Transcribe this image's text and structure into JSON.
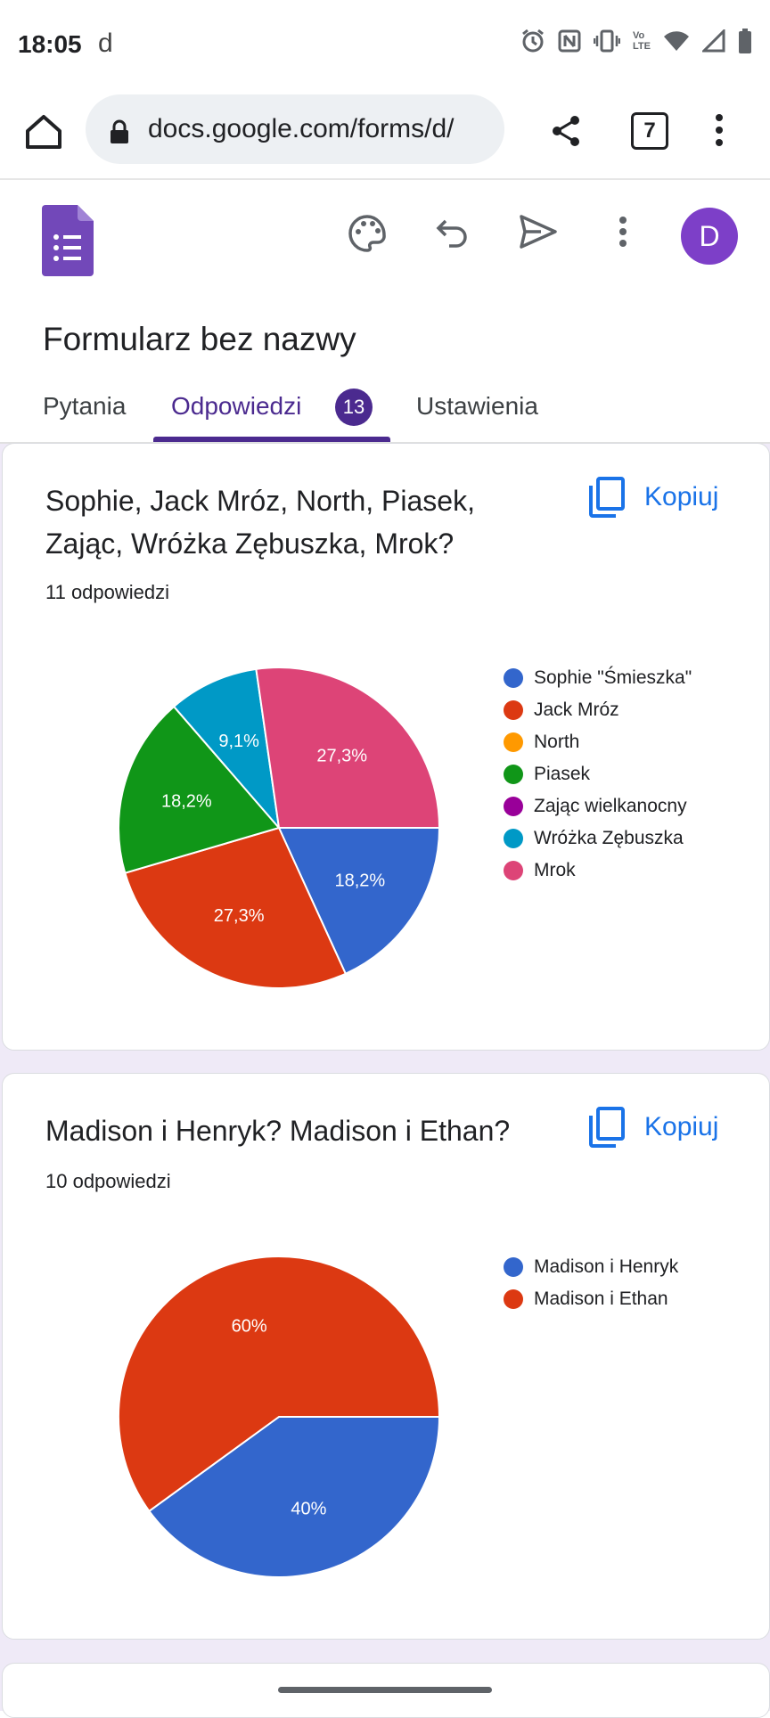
{
  "status": {
    "time": "18:05",
    "app_glyph": "d",
    "icons": [
      "alarm-icon",
      "nfc-icon",
      "vibrate-icon",
      "volte-icon",
      "wifi-icon",
      "signal-icon",
      "battery-icon"
    ],
    "volte_label": "Vo\nLTE"
  },
  "browser": {
    "url": "docs.google.com/forms/d/",
    "tab_count": "7"
  },
  "form": {
    "title": "Formularz bez nazwy",
    "avatar_letter": "D",
    "accent": "#4b2a8f"
  },
  "tabs": [
    {
      "label": "Pytania"
    },
    {
      "label": "Odpowiedzi",
      "badge": "13"
    },
    {
      "label": "Ustawienia"
    }
  ],
  "cards": [
    {
      "title": "Sophie, Jack Mróz, North, Piasek, Zając, Wróżka Zębuszka, Mrok?",
      "count": "11 odpowiedzi",
      "copy_label": "Kopiuj"
    },
    {
      "title": "Madison i Henryk? Madison i Ethan?",
      "count": "10 odpowiedzi",
      "copy_label": "Kopiuj"
    }
  ],
  "chart_data": [
    {
      "type": "pie",
      "title": "",
      "series": [
        {
          "name": "Sophie \"Śmieszka\"",
          "value": 18.2,
          "label": "18,2%",
          "color": "#3366cc"
        },
        {
          "name": "Jack Mróz",
          "value": 27.3,
          "label": "27,3%",
          "color": "#dc3912"
        },
        {
          "name": "North",
          "value": 0,
          "label": "",
          "color": "#ff9900"
        },
        {
          "name": "Piasek",
          "value": 18.2,
          "label": "18,2%",
          "color": "#109618"
        },
        {
          "name": "Zając wielkanocny",
          "value": 0,
          "label": "",
          "color": "#990099"
        },
        {
          "name": "Wróżka Zębuszka",
          "value": 9.1,
          "label": "9,1%",
          "color": "#0099c6"
        },
        {
          "name": "Mrok",
          "value": 27.3,
          "label": "27,3%",
          "color": "#dd4477"
        }
      ]
    },
    {
      "type": "pie",
      "title": "",
      "series": [
        {
          "name": "Madison i Henryk",
          "value": 40,
          "label": "40%",
          "color": "#3366cc"
        },
        {
          "name": "Madison i Ethan",
          "value": 60,
          "label": "60%",
          "color": "#dc3912"
        }
      ]
    }
  ]
}
